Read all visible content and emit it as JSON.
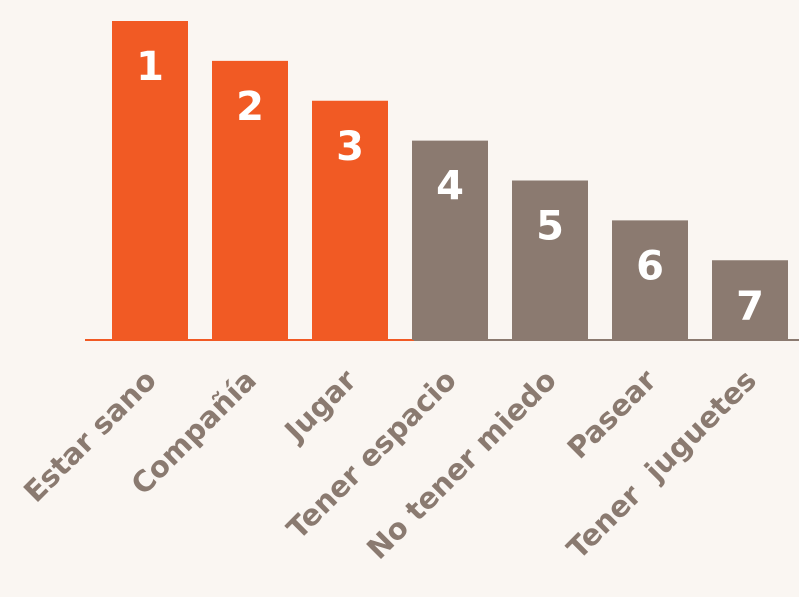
{
  "chart_data": {
    "type": "bar",
    "categories": [
      "Estar sano",
      "Compañía",
      "Jugar",
      "Tener espacio",
      "No tener miedo",
      "Pasear",
      "Tener  juguetes"
    ],
    "values": [
      1,
      2,
      3,
      4,
      5,
      6,
      7
    ],
    "colors": [
      "#f15a24",
      "#f15a24",
      "#f15a24",
      "#8b7a70",
      "#8b7a70",
      "#8b7a70",
      "#8b7a70"
    ],
    "ylim": [
      9,
      1
    ]
  }
}
